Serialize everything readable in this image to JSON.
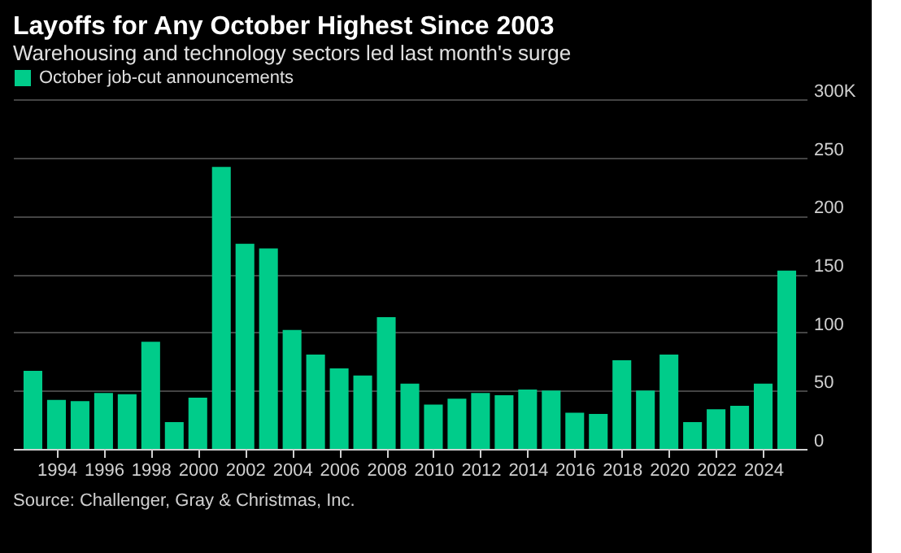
{
  "chart_data": {
    "type": "bar",
    "title": "Layoffs for Any October Highest Since 2003",
    "subtitle": "Warehousing and technology sectors led last month's surge",
    "x": [
      1993,
      1994,
      1995,
      1996,
      1997,
      1998,
      1999,
      2000,
      2001,
      2002,
      2003,
      2004,
      2005,
      2006,
      2007,
      2008,
      2009,
      2010,
      2011,
      2012,
      2013,
      2014,
      2015,
      2016,
      2017,
      2018,
      2019,
      2020,
      2021,
      2022,
      2023,
      2024,
      2025
    ],
    "series": [
      {
        "name": "October job-cut announcements",
        "color": "#00cc8a",
        "values": [
          67,
          42,
          41,
          48,
          47,
          92,
          23,
          44,
          242,
          176,
          172,
          102,
          81,
          69,
          63,
          113,
          56,
          38,
          43,
          48,
          46,
          51,
          50,
          31,
          30,
          76,
          50,
          81,
          23,
          34,
          37,
          56,
          153
        ]
      }
    ],
    "xlim": [
      1992.5,
      2025.5
    ],
    "xticks": [
      1994,
      1996,
      1998,
      2000,
      2002,
      2004,
      2006,
      2008,
      2010,
      2012,
      2014,
      2016,
      2018,
      2020,
      2022,
      2024
    ],
    "ylim": [
      0,
      300
    ],
    "yticks": [
      0,
      50,
      100,
      150,
      200,
      250,
      {
        "value": 300,
        "label": "300K"
      }
    ],
    "grid": "y",
    "legend": "top left",
    "annotations": [
      "Source: Challenger, Gray & Christmas, Inc."
    ]
  }
}
